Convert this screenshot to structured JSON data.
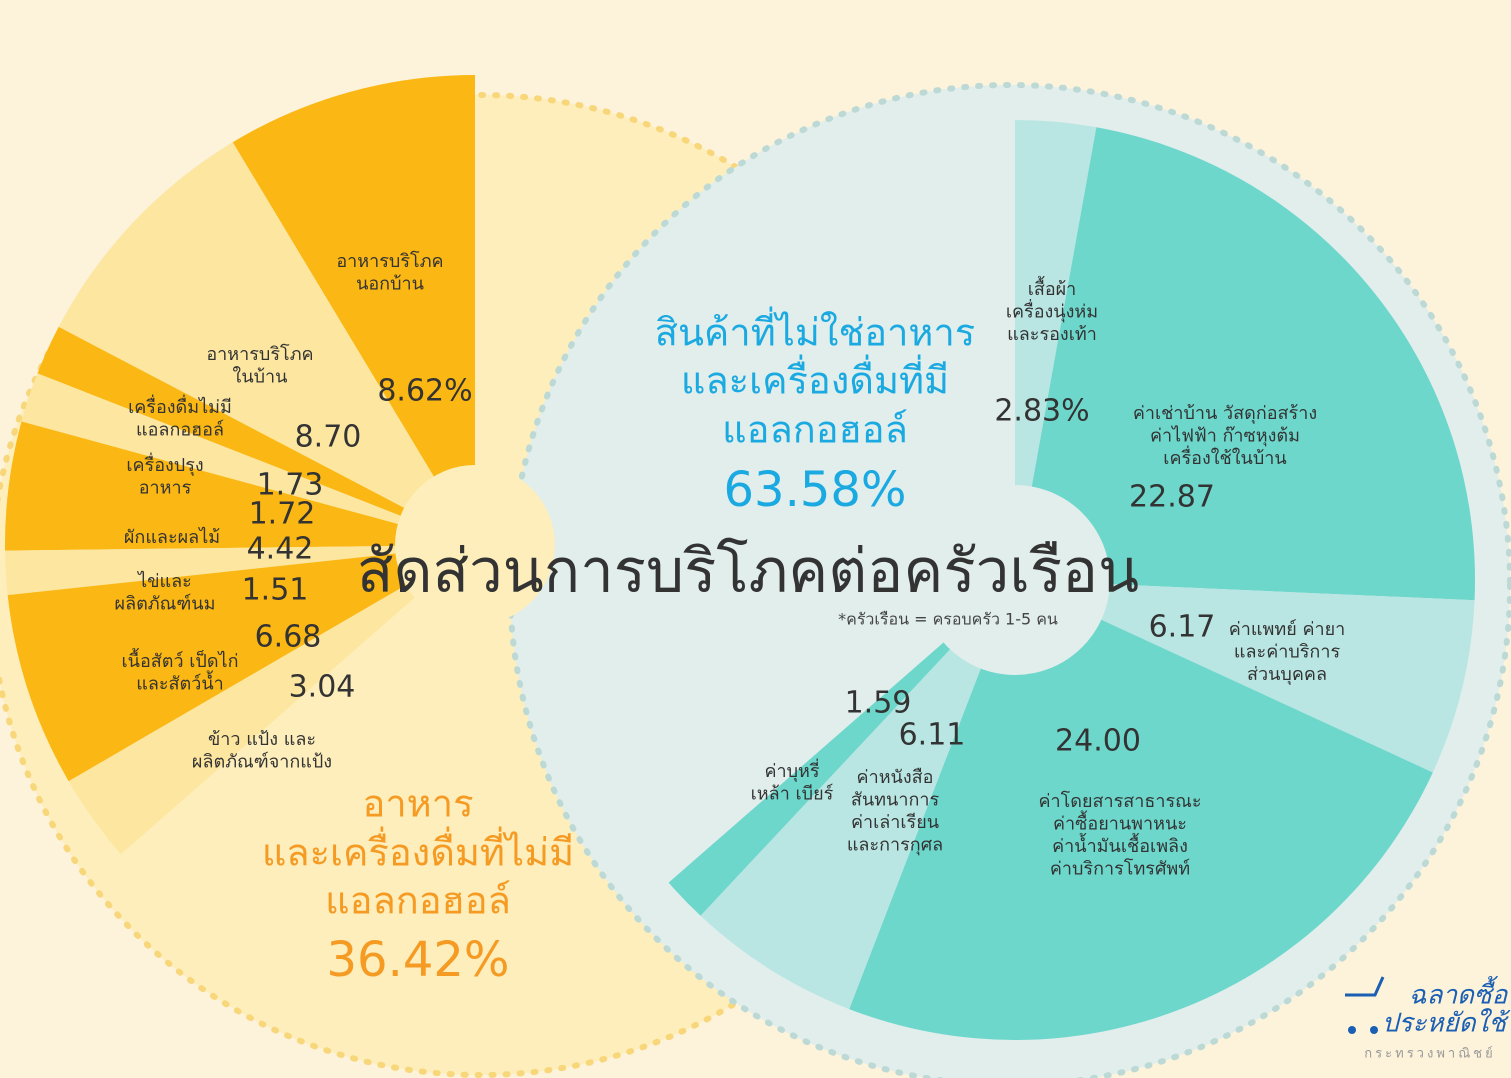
{
  "title": "สัดส่วนการบริโภคต่อครัวเรือน",
  "footnote": "*ครัวเรือน = ครอบครัว 1-5 คน",
  "groups": [
    {
      "name": [
        "อาหาร",
        "และเครื่องดื่มที่ไม่มี",
        "แอลกอฮอล์"
      ],
      "value": 36.42,
      "label": "36.42%",
      "items": [
        {
          "name": [
            "อาหารบริโภค",
            "นอกบ้าน"
          ],
          "value": 8.62,
          "label": "8.62%"
        },
        {
          "name": [
            "อาหารบริโภค",
            "ในบ้าน"
          ],
          "value": 8.7,
          "label": "8.70"
        },
        {
          "name": [
            "เครื่องดื่มไม่มี",
            "แอลกอฮอล์"
          ],
          "value": 1.73,
          "label": "1.73"
        },
        {
          "name": [
            "เครื่องปรุง",
            "อาหาร"
          ],
          "value": 1.72,
          "label": "1.72"
        },
        {
          "name": [
            "ผักและผลไม้"
          ],
          "value": 4.42,
          "label": "4.42"
        },
        {
          "name": [
            "ไข่และ",
            "ผลิตภัณฑ์นม"
          ],
          "value": 1.51,
          "label": "1.51"
        },
        {
          "name": [
            "เนื้อสัตว์ เป็ดไก่",
            "และสัตว์น้ำ"
          ],
          "value": 6.68,
          "label": "6.68"
        },
        {
          "name": [
            "ข้าว แป้ง และ",
            "ผลิตภัณฑ์จากแป้ง"
          ],
          "value": 3.04,
          "label": "3.04"
        }
      ]
    },
    {
      "name": [
        "สินค้าที่ไม่ใช่อาหาร",
        "และเครื่องดื่มที่มี",
        "แอลกอฮอล์"
      ],
      "value": 63.58,
      "label": "63.58%",
      "items": [
        {
          "name": [
            "เสื้อผ้า",
            "เครื่องนุ่งห่ม",
            "และรองเท้า"
          ],
          "value": 2.83,
          "label": "2.83%"
        },
        {
          "name": [
            "ค่าเช่าบ้าน วัสดุก่อสร้าง",
            "ค่าไฟฟ้า ก๊าซหุงต้ม",
            "เครื่องใช้ในบ้าน"
          ],
          "value": 22.87,
          "label": "22.87"
        },
        {
          "name": [
            "ค่าแพทย์ ค่ายา",
            "และค่าบริการ",
            "ส่วนบุคคล"
          ],
          "value": 6.17,
          "label": "6.17"
        },
        {
          "name": [
            "ค่าโดยสารสาธารณะ",
            "ค่าซื้อยานพาหนะ",
            "ค่าน้ำมันเชื้อเพลิง",
            "ค่าบริการโทรศัพท์"
          ],
          "value": 24.0,
          "label": "24.00"
        },
        {
          "name": [
            "ค่าหนังสือ",
            "สันทนาการ",
            "ค่าเล่าเรียน",
            "และการกุศล"
          ],
          "value": 6.11,
          "label": "6.11"
        },
        {
          "name": [
            "ค่าบุหรี่",
            "เหล้า เบียร์"
          ],
          "value": 1.59,
          "label": "1.59"
        }
      ]
    }
  ],
  "logo": {
    "line1": "ฉลาดซื้อ",
    "line2": "ประหยัดใช้",
    "org": "กระทรวงพาณิชย์"
  }
}
